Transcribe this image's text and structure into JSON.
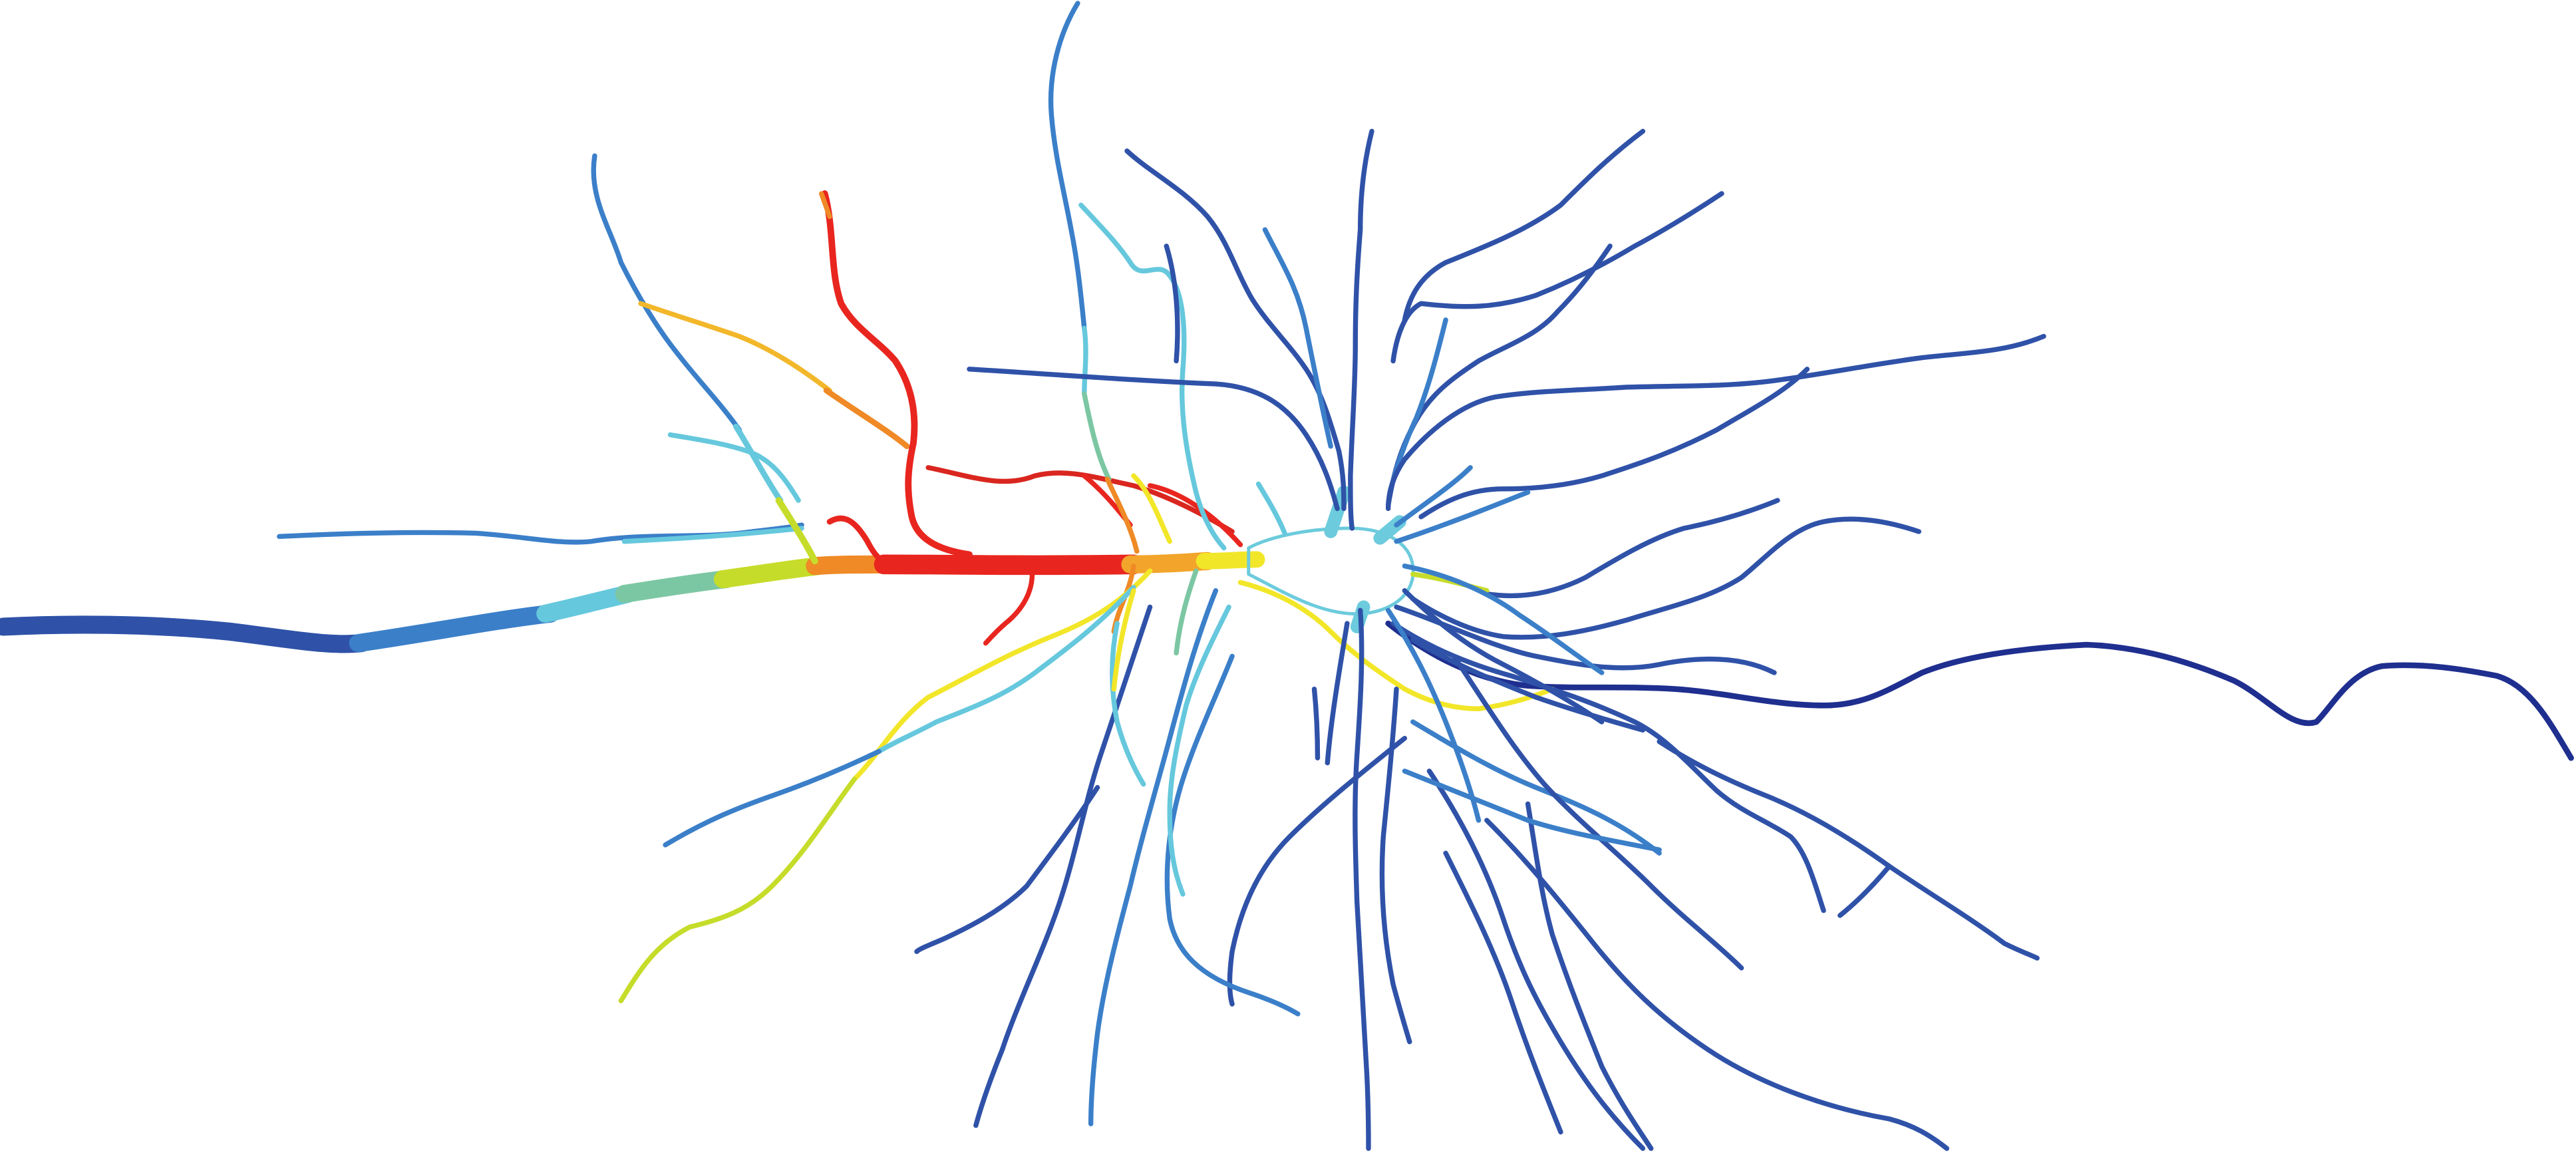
{
  "image": {
    "subject": "neuron-morphology",
    "background_color": "#ffffff",
    "colormap": [
      "#1f2f8f",
      "#2f5bb5",
      "#3f87d0",
      "#6ccbdc",
      "#7dc9a6",
      "#c9dd2a",
      "#f2e629",
      "#f0a12a",
      "#ee6a23",
      "#e5261f"
    ]
  }
}
